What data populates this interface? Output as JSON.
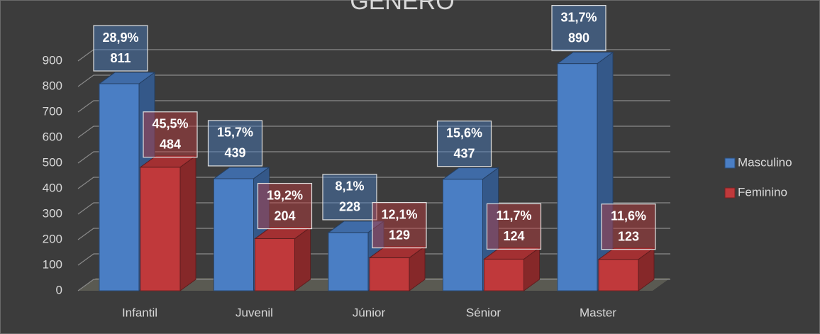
{
  "chart_data": {
    "type": "bar3d",
    "title": "GÉNERO",
    "categories": [
      "Infantil",
      "Juvenil",
      "Júnior",
      "Sénior",
      "Master"
    ],
    "series": [
      {
        "name": "Masculino",
        "color": "#4a7ec4",
        "values": [
          811,
          439,
          228,
          437,
          890
        ],
        "percentages": [
          28.9,
          15.7,
          8.1,
          15.6,
          31.7
        ],
        "percentage_labels": [
          "28,9%",
          "15,7%",
          "8,1%",
          "15,6%",
          "31,7%"
        ]
      },
      {
        "name": "Feminino",
        "color": "#c0393b",
        "values": [
          484,
          204,
          129,
          124,
          123
        ],
        "percentages": [
          45.5,
          19.2,
          12.1,
          11.7,
          11.6
        ],
        "percentage_labels": [
          "45,5%",
          "19,2%",
          "12,1%",
          "11,7%",
          "11,6%"
        ]
      }
    ],
    "ylim": [
      0,
      900
    ],
    "yticks": [
      0,
      100,
      200,
      300,
      400,
      500,
      600,
      700,
      800,
      900
    ],
    "grid": true,
    "legend": "right"
  }
}
